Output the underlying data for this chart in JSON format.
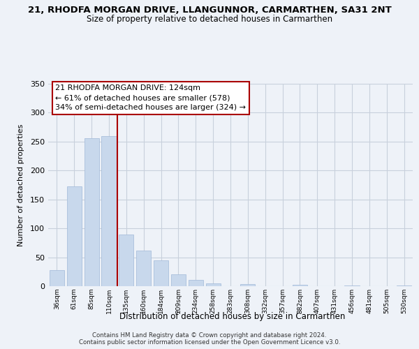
{
  "title": "21, RHODFA MORGAN DRIVE, LLANGUNNOR, CARMARTHEN, SA31 2NT",
  "subtitle": "Size of property relative to detached houses in Carmarthen",
  "xlabel": "Distribution of detached houses by size in Carmarthen",
  "ylabel": "Number of detached properties",
  "bar_labels": [
    "36sqm",
    "61sqm",
    "85sqm",
    "110sqm",
    "135sqm",
    "160sqm",
    "184sqm",
    "209sqm",
    "234sqm",
    "258sqm",
    "283sqm",
    "308sqm",
    "332sqm",
    "357sqm",
    "382sqm",
    "407sqm",
    "431sqm",
    "456sqm",
    "481sqm",
    "505sqm",
    "530sqm"
  ],
  "bar_values": [
    28,
    172,
    256,
    260,
    89,
    62,
    45,
    20,
    11,
    5,
    0,
    4,
    0,
    0,
    2,
    0,
    0,
    1,
    0,
    0,
    1
  ],
  "bar_color": "#c8d8ec",
  "bar_edge_color": "#a0b8d8",
  "vline_x": 3.5,
  "vline_color": "#aa0000",
  "ylim": [
    0,
    350
  ],
  "yticks": [
    0,
    50,
    100,
    150,
    200,
    250,
    300,
    350
  ],
  "annotation_title": "21 RHODFA MORGAN DRIVE: 124sqm",
  "annotation_line1": "← 61% of detached houses are smaller (578)",
  "annotation_line2": "34% of semi-detached houses are larger (324) →",
  "footnote1": "Contains HM Land Registry data © Crown copyright and database right 2024.",
  "footnote2": "Contains public sector information licensed under the Open Government Licence v3.0.",
  "background_color": "#eef2f8",
  "plot_bg_color": "#eef2f8",
  "grid_color": "#c8d0dc"
}
